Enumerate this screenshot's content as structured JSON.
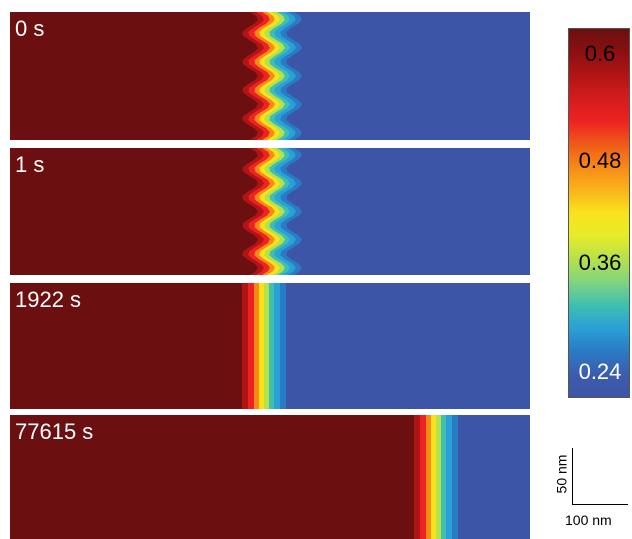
{
  "panels": [
    {
      "label": "0 s",
      "interface": "wavy"
    },
    {
      "label": "1 s",
      "interface": "wavy"
    },
    {
      "label": "1922 s",
      "interface": "flat"
    },
    {
      "label": "77615 s",
      "interface": "flat"
    }
  ],
  "colorbar": {
    "ticks": [
      {
        "label": "0.6",
        "color": "#000000"
      },
      {
        "label": "0.48",
        "color": "#000000"
      },
      {
        "label": "0.36",
        "color": "#000000"
      },
      {
        "label": "0.24",
        "color": "#ffffff"
      }
    ],
    "colors": [
      "#6b0f10",
      "#8b1010",
      "#b01515",
      "#d31c1c",
      "#ee2222",
      "#f05a1a",
      "#f58a17",
      "#f9b41c",
      "#f9e21c",
      "#e6ec2a",
      "#b4e14c",
      "#7fd47f",
      "#3fbfb0",
      "#2aa0d6",
      "#2a7bc6",
      "#3c5dae",
      "#3d55a6"
    ]
  },
  "scalebar": {
    "horizontal": "100 nm",
    "vertical": "50 nm"
  }
}
